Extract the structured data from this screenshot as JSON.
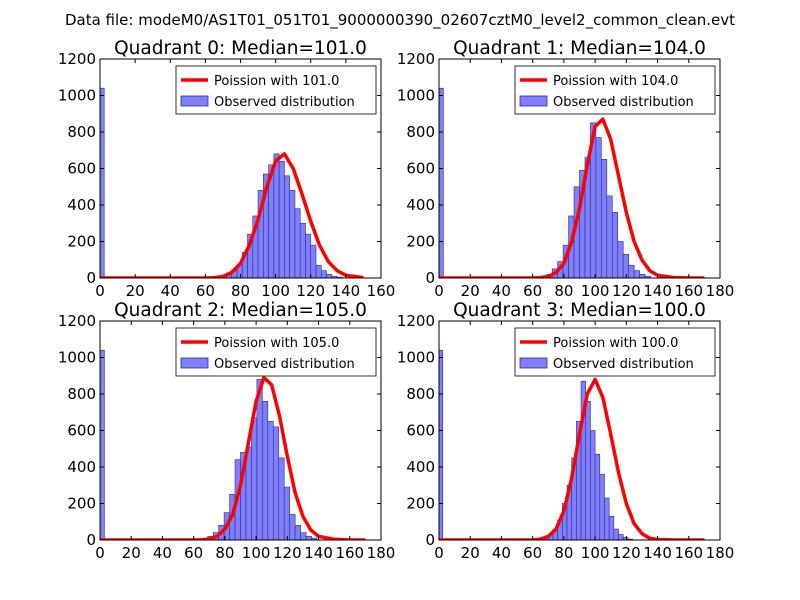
{
  "figure_title": "Data file: modeM0/AS1T01_051T01_9000000390_02607cztM0_level2_common_clean.evt",
  "colors": {
    "bar_fill": "#7f7ff7",
    "bar_edge": "#2a2aa8",
    "curve": "#ff0000",
    "axes": "#000000"
  },
  "legend_labels": {
    "observed": "Observed distribution"
  },
  "chart_data": [
    {
      "type": "bar",
      "title": "Quadrant 0: Median=101.0",
      "legend_curve": "Poission with 101.0",
      "xlim": [
        0,
        160
      ],
      "ylim": [
        0,
        1200
      ],
      "xticks": [
        0,
        20,
        40,
        60,
        80,
        100,
        120,
        140,
        160
      ],
      "yticks": [
        0,
        200,
        400,
        600,
        800,
        1000,
        1200
      ],
      "bin_width": 3,
      "zero_bar": 1040,
      "hist_start": 66,
      "hist_values": [
        5,
        10,
        20,
        40,
        70,
        140,
        240,
        340,
        480,
        570,
        620,
        680,
        640,
        560,
        480,
        380,
        300,
        240,
        180,
        70,
        40,
        20,
        10,
        5
      ],
      "poisson_x": [
        0,
        20,
        40,
        60,
        65,
        70,
        75,
        80,
        85,
        90,
        95,
        100,
        105,
        110,
        115,
        120,
        125,
        130,
        135,
        140,
        150
      ],
      "poisson_y": [
        0,
        0,
        0,
        0,
        2,
        8,
        30,
        80,
        180,
        320,
        500,
        640,
        680,
        600,
        460,
        310,
        180,
        90,
        40,
        15,
        2
      ]
    },
    {
      "type": "bar",
      "title": "Quadrant 1: Median=104.0",
      "legend_curve": "Poission with 104.0",
      "xlim": [
        0,
        180
      ],
      "ylim": [
        0,
        1200
      ],
      "xticks": [
        0,
        20,
        40,
        60,
        80,
        100,
        120,
        140,
        160,
        180
      ],
      "yticks": [
        0,
        200,
        400,
        600,
        800,
        1000,
        1200
      ],
      "bin_width": 3.5,
      "zero_bar": 1040,
      "hist_start": 62,
      "hist_values": [
        5,
        10,
        20,
        50,
        90,
        180,
        340,
        500,
        590,
        660,
        850,
        770,
        650,
        450,
        360,
        200,
        130,
        70,
        40,
        20,
        10
      ],
      "poisson_x": [
        0,
        20,
        40,
        60,
        65,
        70,
        75,
        80,
        85,
        90,
        95,
        100,
        105,
        110,
        115,
        120,
        125,
        130,
        135,
        140,
        150,
        160,
        170
      ],
      "poisson_y": [
        0,
        0,
        0,
        0,
        2,
        8,
        30,
        80,
        200,
        380,
        620,
        830,
        870,
        760,
        560,
        360,
        200,
        100,
        40,
        15,
        3,
        0,
        0
      ]
    },
    {
      "type": "bar",
      "title": "Quadrant 2: Median=105.0",
      "legend_curve": "Poission with 105.0",
      "xlim": [
        0,
        180
      ],
      "ylim": [
        0,
        1200
      ],
      "xticks": [
        0,
        20,
        40,
        60,
        80,
        100,
        120,
        140,
        160,
        180
      ],
      "yticks": [
        0,
        200,
        400,
        600,
        800,
        1000,
        1200
      ],
      "bin_width": 3.5,
      "zero_bar": 1040,
      "hist_start": 62,
      "hist_values": [
        5,
        10,
        20,
        40,
        80,
        150,
        250,
        440,
        480,
        510,
        670,
        880,
        760,
        650,
        620,
        450,
        290,
        140,
        80,
        40,
        20,
        10
      ],
      "poisson_x": [
        0,
        20,
        40,
        60,
        65,
        70,
        75,
        80,
        85,
        90,
        95,
        100,
        105,
        110,
        115,
        120,
        125,
        130,
        135,
        140,
        150,
        160,
        170
      ],
      "poisson_y": [
        0,
        0,
        0,
        0,
        1,
        5,
        20,
        60,
        140,
        300,
        530,
        760,
        890,
        850,
        680,
        460,
        260,
        130,
        55,
        20,
        4,
        0,
        0
      ]
    },
    {
      "type": "bar",
      "title": "Quadrant 3: Median=100.0",
      "legend_curve": "Poission with 100.0",
      "xlim": [
        0,
        180
      ],
      "ylim": [
        0,
        1200
      ],
      "xticks": [
        0,
        20,
        40,
        60,
        80,
        100,
        120,
        140,
        160,
        180
      ],
      "yticks": [
        0,
        200,
        400,
        600,
        800,
        1000,
        1200
      ],
      "bin_width": 3,
      "zero_bar": 1040,
      "hist_start": 64,
      "hist_values": [
        5,
        15,
        30,
        60,
        110,
        200,
        300,
        450,
        650,
        870,
        760,
        600,
        470,
        360,
        230,
        130,
        60,
        30,
        15,
        5
      ],
      "poisson_x": [
        0,
        20,
        40,
        60,
        65,
        70,
        75,
        80,
        85,
        90,
        95,
        100,
        105,
        110,
        115,
        120,
        125,
        130,
        135,
        140,
        150,
        160,
        170
      ],
      "poisson_y": [
        0,
        0,
        0,
        0,
        5,
        20,
        60,
        160,
        340,
        580,
        800,
        880,
        780,
        580,
        370,
        200,
        90,
        35,
        10,
        3,
        0,
        0,
        0
      ]
    }
  ]
}
